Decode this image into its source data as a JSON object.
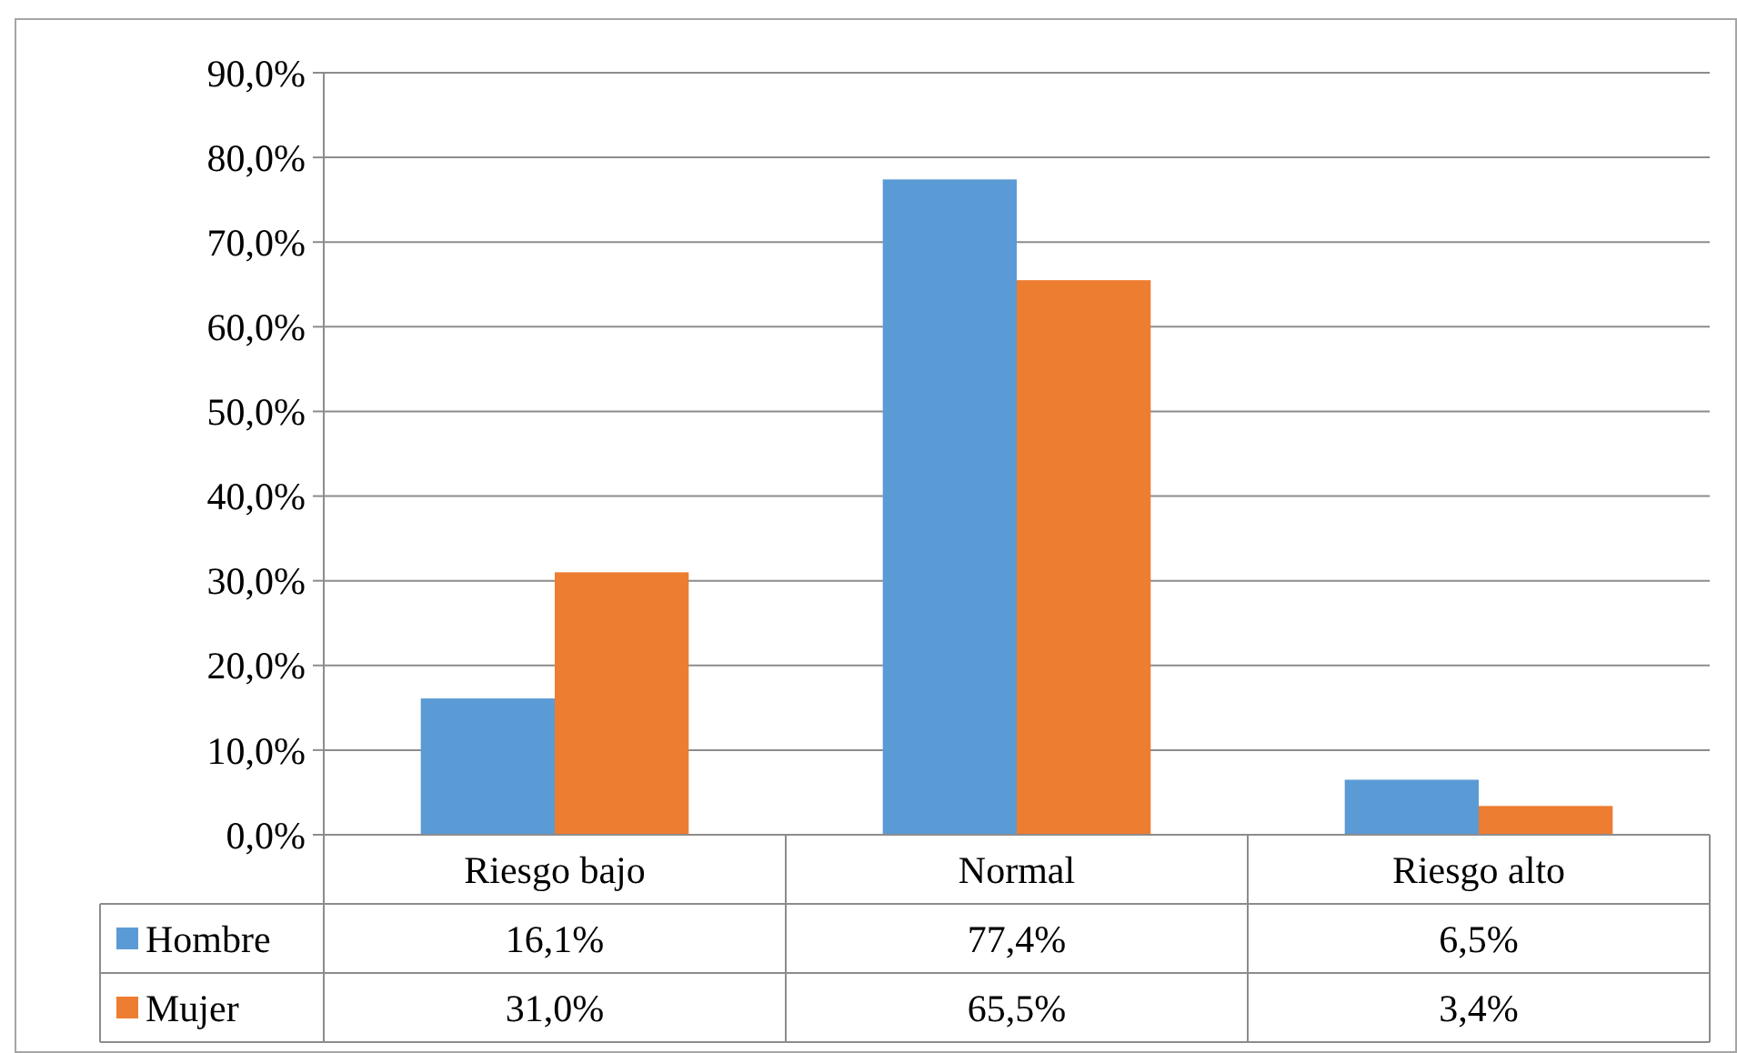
{
  "chart_data": {
    "type": "bar",
    "categories": [
      "Riesgo bajo",
      "Normal",
      "Riesgo alto"
    ],
    "series": [
      {
        "name": "Hombre",
        "color": "#5b9bd5",
        "values": [
          16.1,
          77.4,
          6.5
        ],
        "value_labels": [
          "16,1%",
          "77,4%",
          "6,5%"
        ]
      },
      {
        "name": "Mujer",
        "color": "#ed7d31",
        "values": [
          31.0,
          65.5,
          3.4
        ],
        "value_labels": [
          "31,0%",
          "65,5%",
          "3,4%"
        ]
      }
    ],
    "ylim": [
      0,
      90
    ],
    "yticks": [
      {
        "value": 0,
        "label": "0,0%"
      },
      {
        "value": 10,
        "label": "10,0%"
      },
      {
        "value": 20,
        "label": "20,0%"
      },
      {
        "value": 30,
        "label": "30,0%"
      },
      {
        "value": 40,
        "label": "40,0%"
      },
      {
        "value": 50,
        "label": "50,0%"
      },
      {
        "value": 60,
        "label": "60,0%"
      },
      {
        "value": 70,
        "label": "70,0%"
      },
      {
        "value": 80,
        "label": "80,0%"
      },
      {
        "value": 90,
        "label": "90,0%"
      }
    ],
    "grid": "y",
    "legend": "bottom"
  }
}
